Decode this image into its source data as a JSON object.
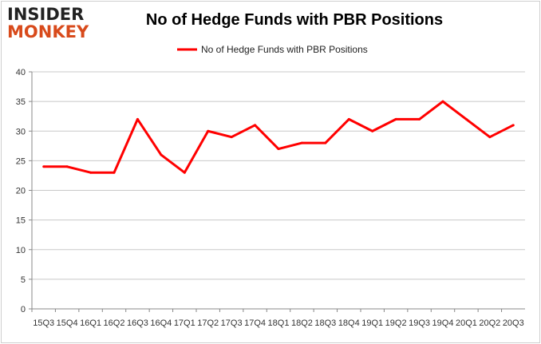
{
  "logo": {
    "line1": "INSIDER",
    "line2": "MONKEY"
  },
  "chart_data": {
    "type": "line",
    "title": "No of Hedge Funds with PBR Positions",
    "xlabel": "",
    "ylabel": "",
    "categories": [
      "15Q3",
      "15Q4",
      "16Q1",
      "16Q2",
      "16Q3",
      "16Q4",
      "17Q1",
      "17Q2",
      "17Q3",
      "17Q4",
      "18Q1",
      "18Q2",
      "18Q3",
      "18Q4",
      "19Q1",
      "19Q2",
      "19Q3",
      "19Q4",
      "20Q1",
      "20Q2",
      "20Q3"
    ],
    "series": [
      {
        "name": "No of Hedge Funds with PBR Positions",
        "color": "#ff0000",
        "values": [
          24,
          24,
          23,
          23,
          32,
          26,
          23,
          30,
          29,
          31,
          27,
          28,
          28,
          32,
          30,
          32,
          32,
          35,
          32,
          29,
          31
        ]
      }
    ],
    "ylim": [
      0,
      40
    ],
    "yticks": [
      0,
      5,
      10,
      15,
      20,
      25,
      30,
      35,
      40
    ],
    "grid": true,
    "legend_position": "top-center"
  },
  "colors": {
    "grid": "#c8c8c8",
    "axis": "#888888"
  }
}
